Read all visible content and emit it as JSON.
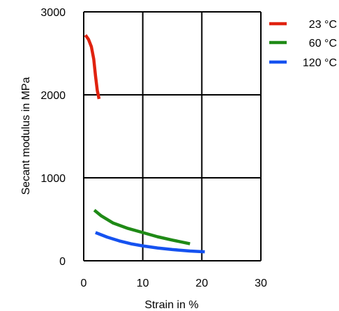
{
  "chart_data": {
    "type": "line",
    "xlabel": "Strain in %",
    "ylabel": "Secant modulus in MPa",
    "xlim": [
      0,
      30
    ],
    "ylim": [
      0,
      3000
    ],
    "xticks": [
      0,
      10,
      20,
      30
    ],
    "yticks": [
      0,
      1000,
      2000,
      3000
    ],
    "grid": true,
    "legend_position": "right",
    "series": [
      {
        "name": "23 °C",
        "color": "#e0220f",
        "points": [
          [
            0.3,
            2720
          ],
          [
            0.8,
            2670
          ],
          [
            1.3,
            2580
          ],
          [
            1.7,
            2430
          ],
          [
            2.0,
            2230
          ],
          [
            2.3,
            2050
          ],
          [
            2.6,
            1950
          ]
        ]
      },
      {
        "name": "60 °C",
        "color": "#1f8a16",
        "points": [
          [
            1.8,
            610
          ],
          [
            3,
            540
          ],
          [
            5,
            455
          ],
          [
            7.5,
            390
          ],
          [
            10,
            340
          ],
          [
            12.5,
            290
          ],
          [
            15,
            250
          ],
          [
            18,
            205
          ]
        ]
      },
      {
        "name": "120 °C",
        "color": "#1552f0",
        "points": [
          [
            2,
            340
          ],
          [
            4,
            285
          ],
          [
            6,
            240
          ],
          [
            8,
            205
          ],
          [
            10,
            180
          ],
          [
            12.5,
            155
          ],
          [
            15,
            135
          ],
          [
            18,
            118
          ],
          [
            20.5,
            108
          ]
        ]
      }
    ]
  }
}
